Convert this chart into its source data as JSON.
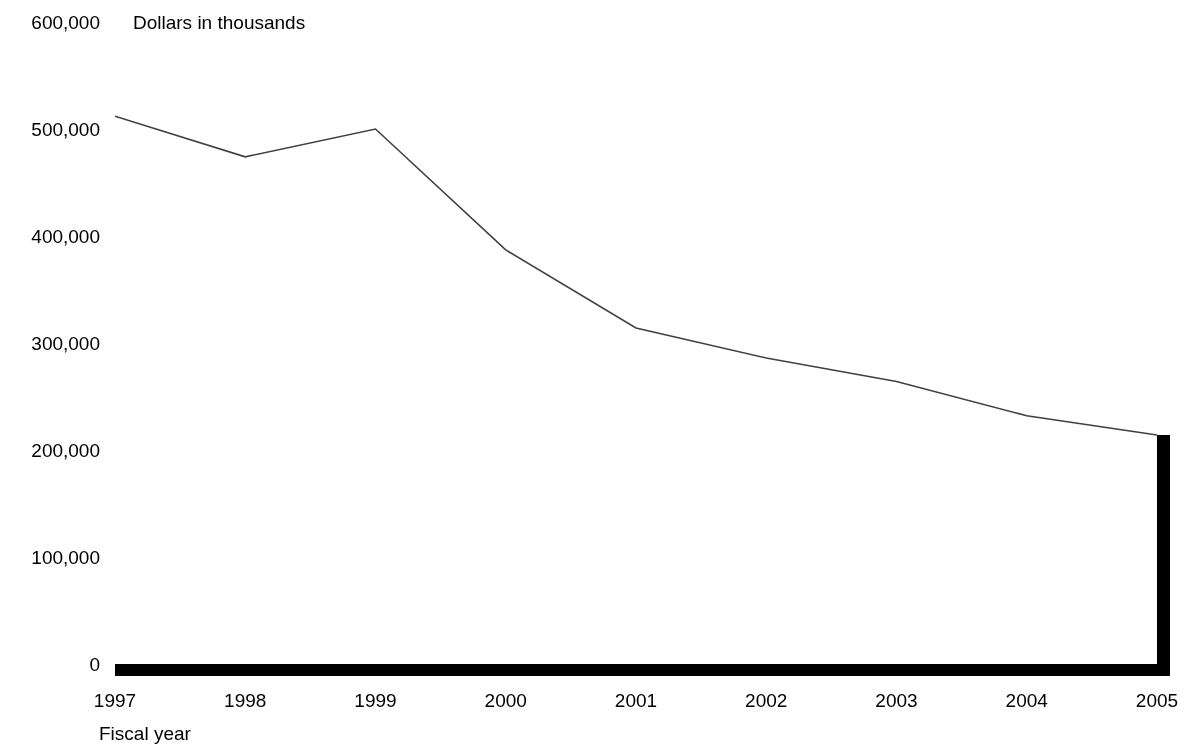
{
  "chart_data": {
    "type": "line",
    "ylabel": "Dollars in thousands",
    "xlabel": "Fiscal year",
    "x": [
      1997,
      1998,
      1999,
      2000,
      2001,
      2002,
      2003,
      2004,
      2005
    ],
    "series": [
      {
        "color": "#404040",
        "values": [
          512000,
          474000,
          500000,
          387000,
          314000,
          286000,
          264000,
          232000,
          214000
        ]
      },
      {
        "type": "bar",
        "color": "#000000",
        "values": [
          null,
          null,
          null,
          null,
          null,
          null,
          null,
          null,
          214000
        ]
      }
    ],
    "xlim": [
      1997,
      2005.1
    ],
    "xticks": [
      1997,
      1998,
      1999,
      2000,
      2001,
      2002,
      2003,
      2004,
      2005
    ],
    "ylim": [
      0,
      600000
    ],
    "yticks": [
      {
        "value": 0,
        "label": "0"
      },
      {
        "value": 100000,
        "label": "100,000"
      },
      {
        "value": 200000,
        "label": "200,000"
      },
      {
        "value": 300000,
        "label": "300,000"
      },
      {
        "value": 400000,
        "label": "400,000"
      },
      {
        "value": 500000,
        "label": "500,000"
      },
      {
        "value": 600000,
        "label": "600,000"
      }
    ]
  }
}
